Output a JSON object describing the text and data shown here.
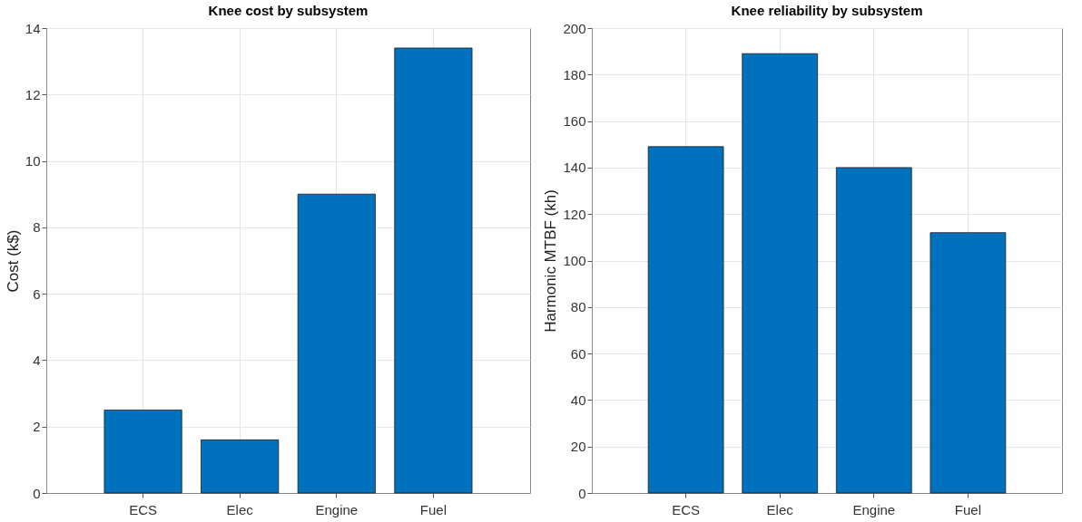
{
  "chart_data": [
    {
      "type": "bar",
      "title": "Knee cost by subsystem",
      "ylabel": "Cost (k$)",
      "categories": [
        "ECS",
        "Elec",
        "Engine",
        "Fuel"
      ],
      "values": [
        2.5,
        1.6,
        9.0,
        13.4
      ],
      "color": "#0072bd",
      "ylim": [
        0,
        14
      ],
      "yticks": [
        0,
        2,
        4,
        6,
        8,
        10,
        12,
        14
      ],
      "grid": true
    },
    {
      "type": "bar",
      "title": "Knee reliability by subsystem",
      "ylabel": "Harmonic MTBF (kh)",
      "categories": [
        "ECS",
        "Elec",
        "Engine",
        "Fuel"
      ],
      "values": [
        149,
        189,
        140,
        112
      ],
      "color": "#0072bd",
      "ylim": [
        0,
        200
      ],
      "yticks": [
        0,
        20,
        40,
        60,
        80,
        100,
        120,
        140,
        160,
        180,
        200
      ],
      "grid": true
    }
  ]
}
